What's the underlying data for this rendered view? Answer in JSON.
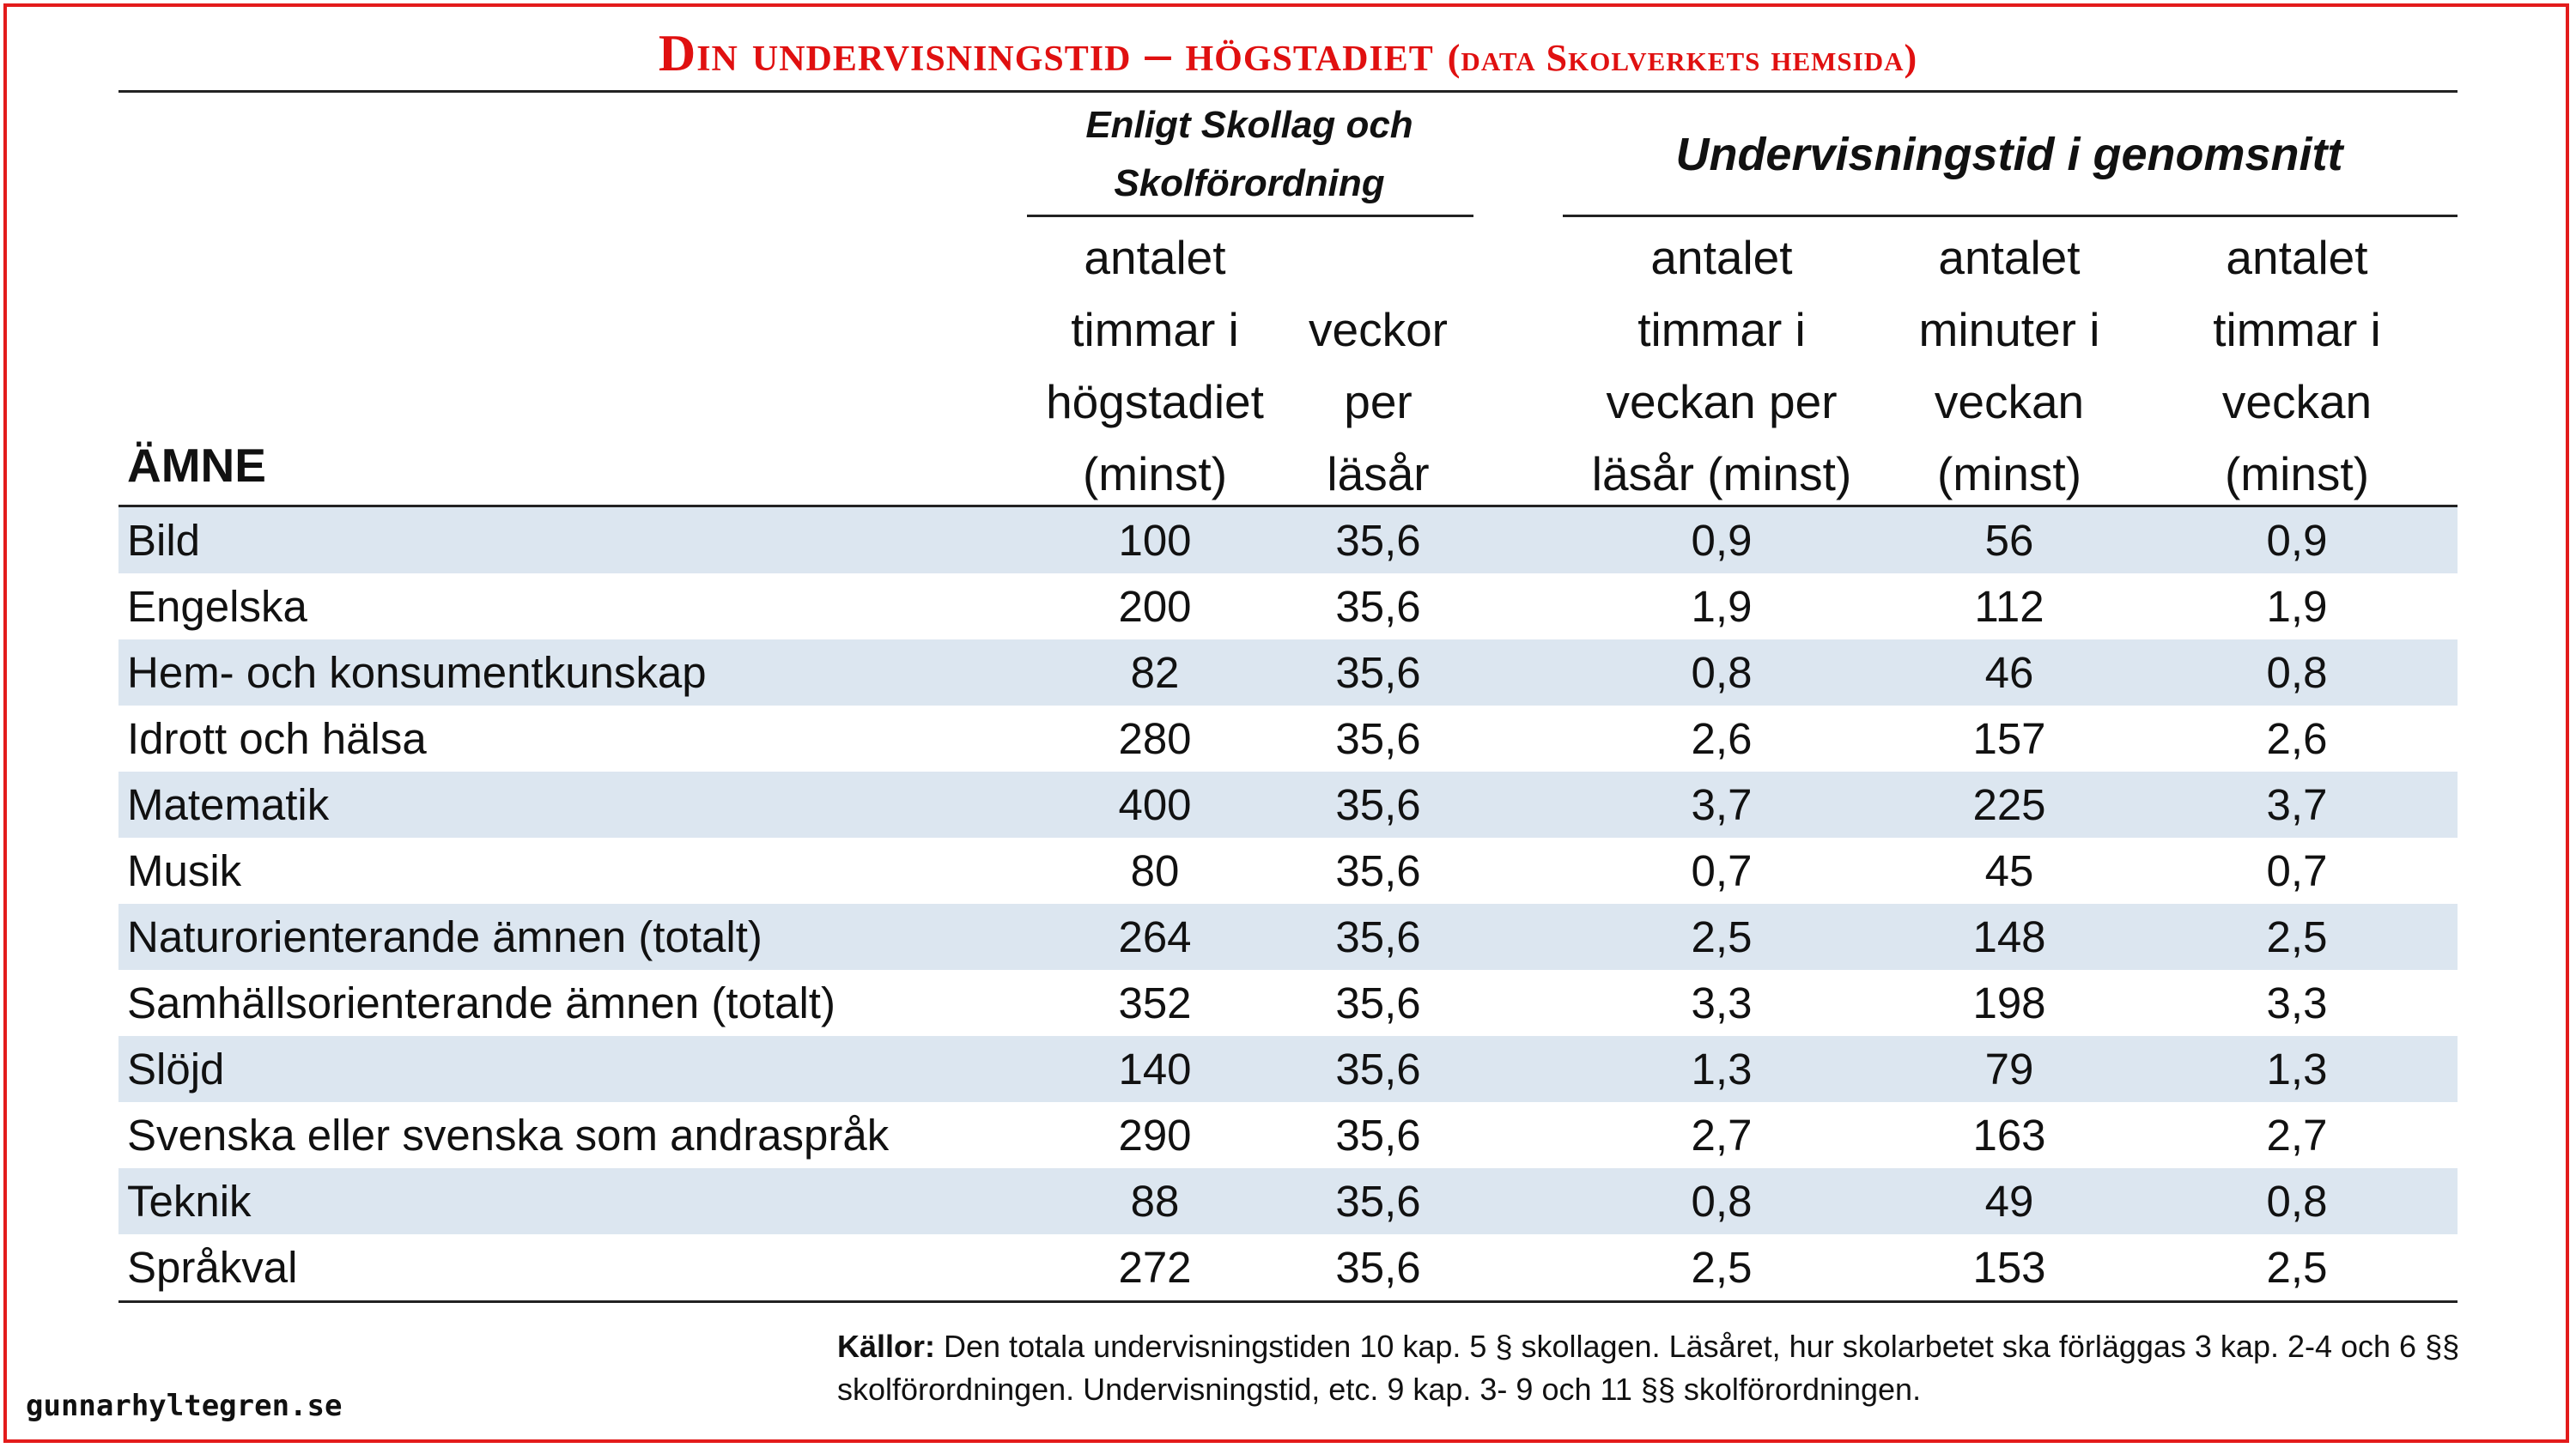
{
  "title": {
    "main": "Din undervisningstid – högstadiet",
    "sub": "(data Skolverkets hemsida)"
  },
  "groups": {
    "law": "Enligt Skollag och Skolförordning",
    "average": "Undervisningstid i genomsnitt"
  },
  "columns": {
    "subject": "ÄMNE",
    "hours_total": [
      "antalet",
      "timmar i",
      "högstadiet",
      "(minst)"
    ],
    "weeks": [
      "veckor",
      "per",
      "läsår"
    ],
    "hours_week": [
      "antalet",
      "timmar i",
      "veckan per",
      "läsår (minst)"
    ],
    "minutes_week": [
      "antalet",
      "minuter i",
      "veckan",
      "(minst)"
    ],
    "hours_week2": [
      "antalet",
      "timmar i",
      "veckan",
      "(minst)"
    ]
  },
  "rows": [
    {
      "subject": "Bild",
      "hours_total": "100",
      "weeks": "35,6",
      "hours_week": "0,9",
      "minutes_week": "56",
      "hours_week2": "0,9"
    },
    {
      "subject": "Engelska",
      "hours_total": "200",
      "weeks": "35,6",
      "hours_week": "1,9",
      "minutes_week": "112",
      "hours_week2": "1,9"
    },
    {
      "subject": "Hem- och konsumentkunskap",
      "hours_total": "82",
      "weeks": "35,6",
      "hours_week": "0,8",
      "minutes_week": "46",
      "hours_week2": "0,8"
    },
    {
      "subject": "Idrott och hälsa",
      "hours_total": "280",
      "weeks": "35,6",
      "hours_week": "2,6",
      "minutes_week": "157",
      "hours_week2": "2,6"
    },
    {
      "subject": "Matematik",
      "hours_total": "400",
      "weeks": "35,6",
      "hours_week": "3,7",
      "minutes_week": "225",
      "hours_week2": "3,7"
    },
    {
      "subject": "Musik",
      "hours_total": "80",
      "weeks": "35,6",
      "hours_week": "0,7",
      "minutes_week": "45",
      "hours_week2": "0,7"
    },
    {
      "subject": "Naturorienterande ämnen (totalt)",
      "hours_total": "264",
      "weeks": "35,6",
      "hours_week": "2,5",
      "minutes_week": "148",
      "hours_week2": "2,5"
    },
    {
      "subject": "Samhällsorienterande ämnen (totalt)",
      "hours_total": "352",
      "weeks": "35,6",
      "hours_week": "3,3",
      "minutes_week": "198",
      "hours_week2": "3,3"
    },
    {
      "subject": "Slöjd",
      "hours_total": "140",
      "weeks": "35,6",
      "hours_week": "1,3",
      "minutes_week": "79",
      "hours_week2": "1,3"
    },
    {
      "subject": "Svenska eller svenska som andraspråk",
      "hours_total": "290",
      "weeks": "35,6",
      "hours_week": "2,7",
      "minutes_week": "163",
      "hours_week2": "2,7"
    },
    {
      "subject": "Teknik",
      "hours_total": "88",
      "weeks": "35,6",
      "hours_week": "0,8",
      "minutes_week": "49",
      "hours_week2": "0,8"
    },
    {
      "subject": "Språkval",
      "hours_total": "272",
      "weeks": "35,6",
      "hours_week": "2,5",
      "minutes_week": "153",
      "hours_week2": "2,5"
    }
  ],
  "sources": {
    "label": "Källor:",
    "text": " Den totala undervisningstiden 10 kap. 5 § skollagen. Läsåret, hur skolarbetet ska förläggas 3 kap. 2-4 och 6 §§",
    "text2": "skolförordningen. Undervisningstid, etc. 9 kap. 3- 9 och 11 §§ skolförordningen."
  },
  "watermark": "gunnarhyltegren.se",
  "colors": {
    "title": "#e01010",
    "frame": "#e31b1b",
    "band": "#dce6f0"
  }
}
